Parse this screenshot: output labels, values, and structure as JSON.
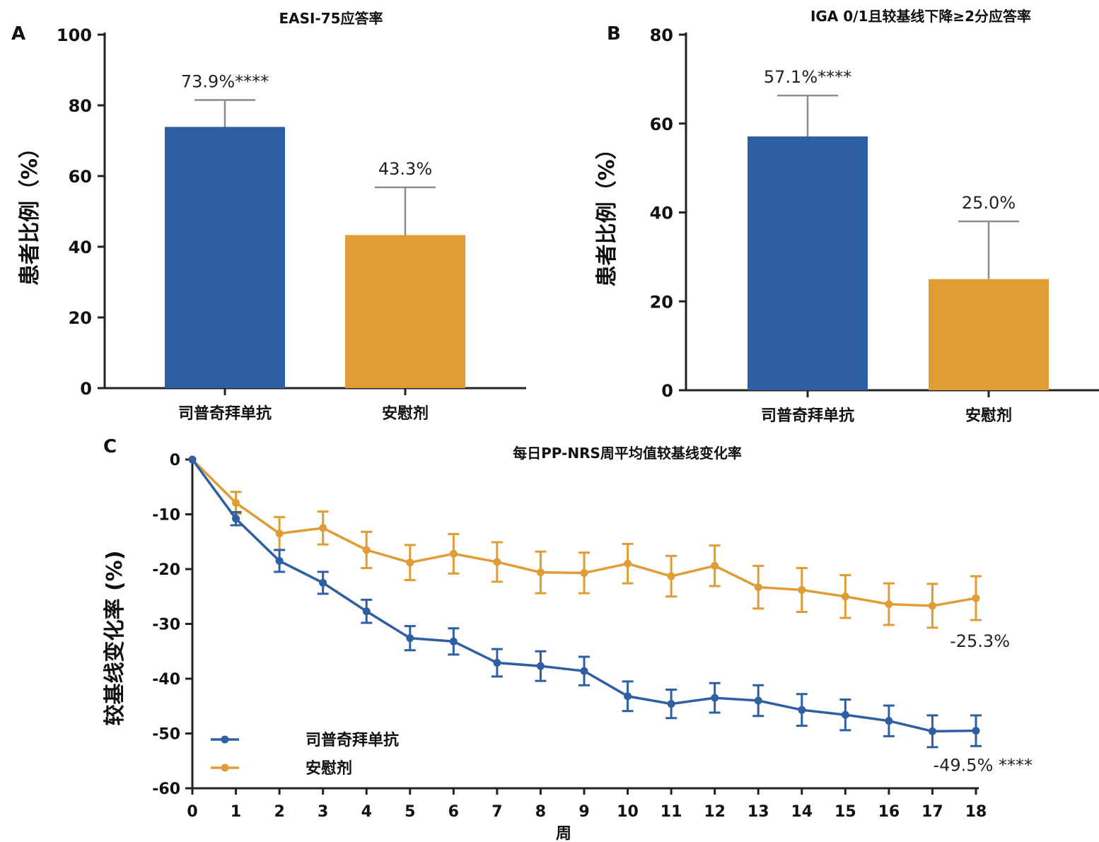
{
  "colors": {
    "drug": "#2f5fa3",
    "placebo": "#e09c35"
  },
  "chart_data": [
    {
      "panel": "A",
      "type": "bar",
      "title": "EASI-75应答率",
      "ylabel": "患者比例（%）",
      "ylim": [
        0,
        100
      ],
      "yticks": [
        0,
        20,
        40,
        60,
        80,
        100
      ],
      "categories": [
        "司普奇拜单抗",
        "安慰剂"
      ],
      "values": [
        73.9,
        43.3
      ],
      "error_upper": [
        81.5,
        56.8
      ],
      "value_labels": [
        "73.9%****",
        "43.3%"
      ]
    },
    {
      "panel": "B",
      "type": "bar",
      "title": "IGA 0/1且较基线下降≥2分应答率",
      "ylabel": "患者比例（%）",
      "ylim": [
        0,
        80
      ],
      "yticks": [
        0,
        20,
        40,
        60,
        80
      ],
      "categories": [
        "司普奇拜单抗",
        "安慰剂"
      ],
      "values": [
        57.1,
        25.0
      ],
      "error_upper": [
        66.3,
        38.0
      ],
      "value_labels": [
        "57.1%****",
        "25.0%"
      ]
    },
    {
      "panel": "C",
      "type": "line",
      "title": "每日PP-NRS周平均值较基线变化率",
      "xlabel": "周",
      "ylabel": "较基线变化率 (%)",
      "xlim": [
        0,
        18
      ],
      "ylim": [
        -60,
        0
      ],
      "xticks": [
        0,
        1,
        2,
        3,
        4,
        5,
        6,
        7,
        8,
        9,
        10,
        11,
        12,
        13,
        14,
        15,
        16,
        17,
        18
      ],
      "yticks": [
        0,
        -10,
        -20,
        -30,
        -40,
        -50,
        -60
      ],
      "x": [
        0,
        1,
        2,
        3,
        4,
        5,
        6,
        7,
        8,
        9,
        10,
        11,
        12,
        13,
        14,
        15,
        16,
        17,
        18
      ],
      "series": [
        {
          "name": "司普奇拜单抗",
          "values": [
            0,
            -10.8,
            -18.5,
            -22.5,
            -27.7,
            -32.6,
            -33.2,
            -37.1,
            -37.7,
            -38.6,
            -43.2,
            -44.6,
            -43.5,
            -44.0,
            -45.7,
            -46.6,
            -47.7,
            -49.6,
            -49.5
          ],
          "error": [
            0,
            1.2,
            2.0,
            2.0,
            2.1,
            2.2,
            2.4,
            2.5,
            2.7,
            2.6,
            2.7,
            2.6,
            2.7,
            2.8,
            2.9,
            2.8,
            2.8,
            2.9,
            2.8
          ],
          "end_label": "-49.5% ****"
        },
        {
          "name": "安慰剂",
          "values": [
            0,
            -7.9,
            -13.5,
            -12.5,
            -16.5,
            -18.8,
            -17.2,
            -18.7,
            -20.6,
            -20.7,
            -19.0,
            -21.3,
            -19.4,
            -23.3,
            -23.8,
            -25.0,
            -26.4,
            -26.7,
            -25.3
          ],
          "error": [
            0,
            2.0,
            3.0,
            3.0,
            3.3,
            3.2,
            3.6,
            3.6,
            3.8,
            3.7,
            3.6,
            3.7,
            3.7,
            3.9,
            4.0,
            3.9,
            3.8,
            4.0,
            4.0
          ],
          "end_label": "-25.3%"
        }
      ],
      "legend_position": "bottom-left"
    }
  ]
}
